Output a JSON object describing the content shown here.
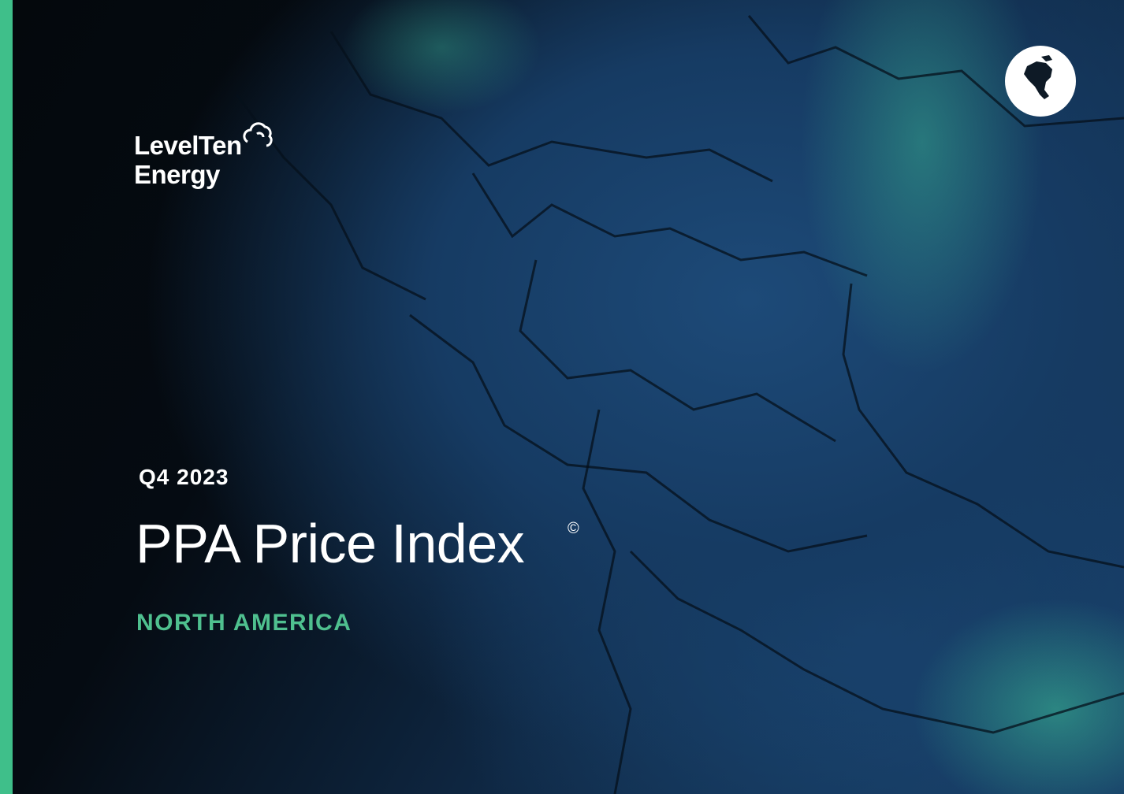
{
  "logo": {
    "line1": "LevelTen",
    "line2": "Energy"
  },
  "period": "Q4 2023",
  "title": "PPA Price Index",
  "title_mark": "©",
  "region": "NORTH AMERICA"
}
